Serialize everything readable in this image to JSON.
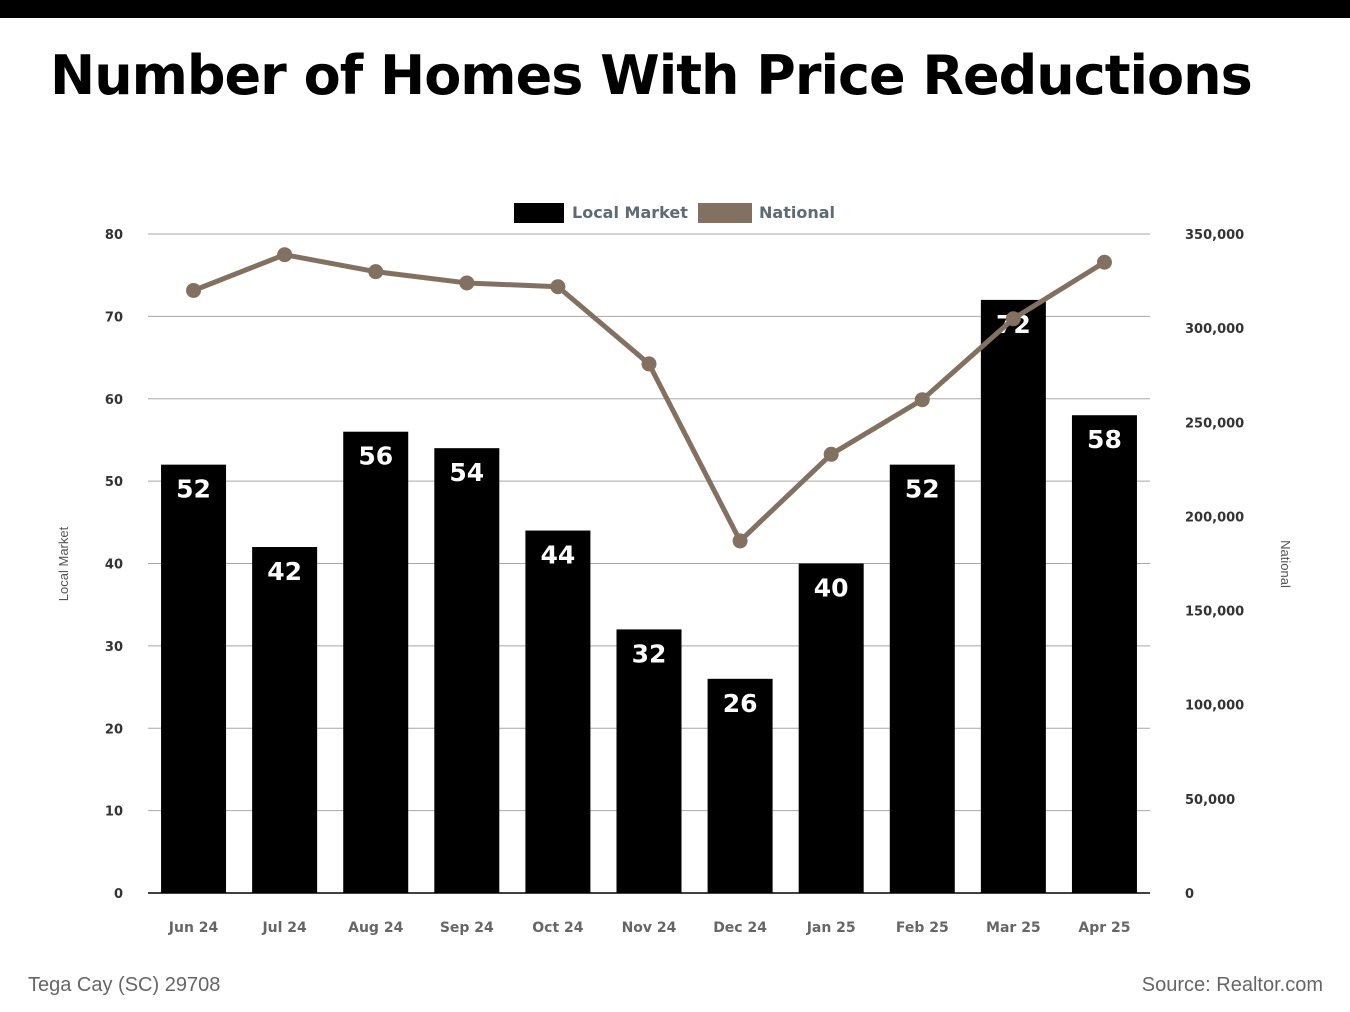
{
  "title": "Number of Homes With Price Reductions",
  "footer": {
    "location": "Tega Cay (SC) 29708",
    "source": "Source: Realtor.com"
  },
  "chart_data": {
    "type": "bar",
    "title": "Number of Homes With Price Reductions",
    "categories": [
      "Jun 24",
      "Jul 24",
      "Aug 24",
      "Sep 24",
      "Oct 24",
      "Nov 24",
      "Dec 24",
      "Jan 25",
      "Feb 25",
      "Mar 25",
      "Apr 25"
    ],
    "series": [
      {
        "name": "Local Market",
        "type": "bar",
        "axis": "left",
        "color": "#000000",
        "values": [
          52,
          42,
          56,
          54,
          44,
          32,
          26,
          40,
          52,
          72,
          58
        ]
      },
      {
        "name": "National",
        "type": "line",
        "axis": "right",
        "color": "#827160",
        "values": [
          320000,
          339000,
          330000,
          324000,
          322000,
          281000,
          187000,
          233000,
          262000,
          305000,
          335000
        ]
      }
    ],
    "ylabel": "Local Market",
    "y2label": "National",
    "ylim": [
      0,
      80
    ],
    "y2lim": [
      0,
      350000
    ],
    "yticks": [
      "0",
      "10",
      "20",
      "30",
      "40",
      "50",
      "60",
      "70",
      "80"
    ],
    "y2ticks": [
      "0",
      "50,000",
      "100,000",
      "150,000",
      "200,000",
      "250,000",
      "300,000",
      "350,000"
    ],
    "grid": true,
    "legend": "top-center",
    "data_labels": true
  }
}
